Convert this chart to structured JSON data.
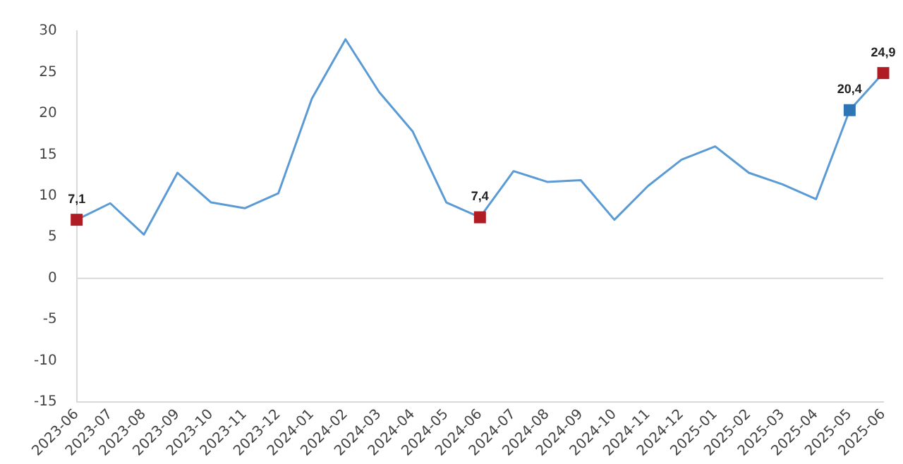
{
  "chart_data": {
    "type": "line",
    "categories": [
      "2023-06",
      "2023-07",
      "2023-08",
      "2023-09",
      "2023-10",
      "2023-11",
      "2023-12",
      "2024-01",
      "2024-02",
      "2024-03",
      "2024-04",
      "2024-05",
      "2024-06",
      "2024-07",
      "2024-08",
      "2024-09",
      "2024-10",
      "2024-11",
      "2024-12",
      "2025-01",
      "2025-02",
      "2025-03",
      "2025-04",
      "2025-05",
      "2025-06"
    ],
    "series": [
      {
        "color": "#5b9bd5",
        "marker": "none",
        "values": [
          7.1,
          9.1,
          5.3,
          12.8,
          9.2,
          8.5,
          10.3,
          21.8,
          29.0,
          22.6,
          17.8,
          9.2,
          7.4,
          13.0,
          11.7,
          11.9,
          7.1,
          11.2,
          14.4,
          16.0,
          12.8,
          11.4,
          9.6,
          20.4,
          24.9
        ]
      },
      {
        "type": "scatter",
        "marker": "square",
        "values": [
          7.1,
          null,
          null,
          null,
          null,
          null,
          null,
          null,
          null,
          null,
          null,
          null,
          7.4,
          null,
          null,
          null,
          null,
          null,
          null,
          null,
          null,
          null,
          null,
          20.4,
          24.9
        ],
        "colors": [
          "#b01c24",
          null,
          null,
          null,
          null,
          null,
          null,
          null,
          null,
          null,
          null,
          null,
          "#b01c24",
          null,
          null,
          null,
          null,
          null,
          null,
          null,
          null,
          null,
          null,
          "#2e75b6",
          "#b01c24"
        ],
        "value_labels": [
          "7,1",
          null,
          null,
          null,
          null,
          null,
          null,
          null,
          null,
          null,
          null,
          null,
          "7,4",
          null,
          null,
          null,
          null,
          null,
          null,
          null,
          null,
          null,
          null,
          "20,4",
          "24,9"
        ]
      }
    ],
    "ylim": [
      -15,
      30
    ],
    "yticks": [
      -15,
      -10,
      -5,
      0,
      5,
      10,
      15,
      20,
      25,
      30
    ],
    "ref_lines": [
      {
        "axis": "y",
        "value": 0,
        "color": "#d9d9d9"
      }
    ],
    "grid": false,
    "legend": false
  }
}
